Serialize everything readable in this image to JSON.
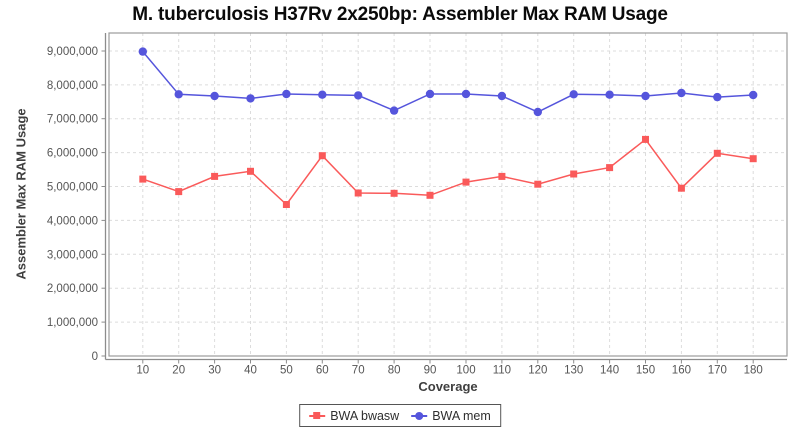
{
  "chart_data": {
    "type": "line",
    "title": "M. tuberculosis H37Rv 2x250bp: Assembler Max RAM Usage",
    "xlabel": "Coverage",
    "ylabel": "Assembler Max RAM Usage",
    "x": [
      10,
      20,
      30,
      40,
      50,
      60,
      70,
      80,
      90,
      100,
      110,
      120,
      130,
      140,
      150,
      160,
      170,
      180
    ],
    "series": [
      {
        "name": "BWA bwasw",
        "marker": "square",
        "color": "#FA5A5A",
        "values": [
          5220000,
          4850000,
          5300000,
          5450000,
          4470000,
          5910000,
          4810000,
          4800000,
          4740000,
          5130000,
          5300000,
          5070000,
          5370000,
          5560000,
          6390000,
          4950000,
          5980000,
          5820000
        ]
      },
      {
        "name": "BWA mem",
        "marker": "circle",
        "color": "#5555DC",
        "values": [
          8980000,
          7720000,
          7670000,
          7600000,
          7730000,
          7710000,
          7690000,
          7240000,
          7730000,
          7730000,
          7670000,
          7200000,
          7720000,
          7710000,
          7670000,
          7760000,
          7640000,
          7700000
        ]
      }
    ],
    "x_ticks": [
      10,
      20,
      30,
      40,
      50,
      60,
      70,
      80,
      90,
      100,
      110,
      120,
      130,
      140,
      150,
      160,
      170,
      180
    ],
    "y_ticks": [
      0,
      1000000,
      2000000,
      3000000,
      4000000,
      5000000,
      6000000,
      7000000,
      8000000,
      9000000
    ],
    "xlim": [
      0.6,
      189.4
    ],
    "ylim": [
      0,
      9530000
    ],
    "grid": "dashed",
    "legend_position": "bottom-center",
    "colors": {
      "grid": "#DCDCDC",
      "plot_border": "#9B9B9B",
      "tick_label": "#555555",
      "axis_title": "#3F3F3F",
      "title": "#0A0A0A",
      "background": "#FFFFFF"
    }
  }
}
